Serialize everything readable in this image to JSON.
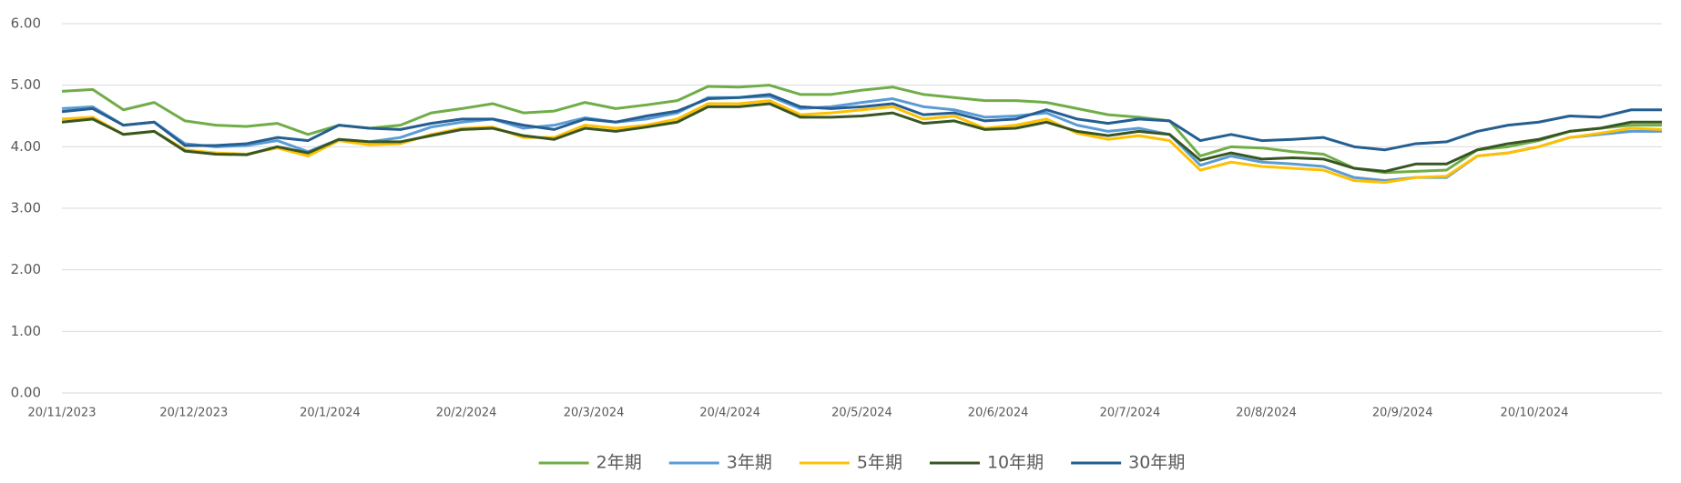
{
  "chart_data": {
    "type": "line",
    "x": [
      "20/11/2023",
      "27/11/2023",
      "4/12/2023",
      "11/12/2023",
      "18/12/2023",
      "25/12/2023",
      "1/1/2024",
      "8/1/2024",
      "15/1/2024",
      "22/1/2024",
      "29/1/2024",
      "5/2/2024",
      "12/2/2024",
      "19/2/2024",
      "26/2/2024",
      "4/3/2024",
      "11/3/2024",
      "18/3/2024",
      "25/3/2024",
      "1/4/2024",
      "8/4/2024",
      "15/4/2024",
      "22/4/2024",
      "29/4/2024",
      "6/5/2024",
      "13/5/2024",
      "20/5/2024",
      "27/5/2024",
      "3/6/2024",
      "10/6/2024",
      "17/6/2024",
      "24/6/2024",
      "1/7/2024",
      "8/7/2024",
      "15/7/2024",
      "22/7/2024",
      "29/7/2024",
      "5/8/2024",
      "12/8/2024",
      "19/8/2024",
      "26/8/2024",
      "2/9/2024",
      "9/9/2024",
      "16/9/2024",
      "23/9/2024",
      "30/9/2024",
      "7/10/2024",
      "14/10/2024",
      "21/10/2024",
      "28/10/2024",
      "4/11/2024",
      "11/11/2024",
      "18/11/2024"
    ],
    "xlim": [
      "20/11/2023",
      "18/11/2024"
    ],
    "xticks": [
      "20/11/2023",
      "20/12/2023",
      "20/1/2024",
      "20/2/2024",
      "20/3/2024",
      "20/4/2024",
      "20/5/2024",
      "20/6/2024",
      "20/7/2024",
      "20/8/2024",
      "20/9/2024",
      "20/10/2024"
    ],
    "ylim": [
      0,
      6
    ],
    "yticks": [
      {
        "value": 0,
        "label": "0.00"
      },
      {
        "value": 1,
        "label": "1.00"
      },
      {
        "value": 2,
        "label": "2.00"
      },
      {
        "value": 3,
        "label": "3.00"
      },
      {
        "value": 4,
        "label": "4.00"
      },
      {
        "value": 5,
        "label": "5.00"
      },
      {
        "value": 6,
        "label": "6.00"
      }
    ],
    "grid": true,
    "legend": "bottom",
    "series": [
      {
        "name": "2年期",
        "color": "#70ad47",
        "values": [
          4.9,
          4.93,
          4.6,
          4.72,
          4.42,
          4.35,
          4.33,
          4.38,
          4.2,
          4.35,
          4.3,
          4.35,
          4.55,
          4.62,
          4.7,
          4.55,
          4.58,
          4.72,
          4.62,
          4.68,
          4.75,
          4.98,
          4.97,
          5.0,
          4.85,
          4.85,
          4.92,
          4.97,
          4.85,
          4.8,
          4.75,
          4.75,
          4.72,
          4.62,
          4.52,
          4.48,
          4.42,
          3.85,
          4.0,
          3.98,
          3.92,
          3.88,
          3.65,
          3.58,
          3.6,
          3.62,
          3.95,
          4.0,
          4.1,
          4.25,
          4.3,
          4.35,
          4.35
        ]
      },
      {
        "name": "3年期",
        "color": "#5b9bd5",
        "values": [
          4.62,
          4.65,
          4.35,
          4.4,
          4.05,
          4.0,
          4.02,
          4.1,
          3.92,
          4.12,
          4.08,
          4.15,
          4.32,
          4.4,
          4.45,
          4.3,
          4.35,
          4.47,
          4.4,
          4.45,
          4.55,
          4.8,
          4.8,
          4.82,
          4.62,
          4.65,
          4.72,
          4.78,
          4.65,
          4.6,
          4.48,
          4.5,
          4.55,
          4.35,
          4.25,
          4.3,
          4.2,
          3.7,
          3.85,
          3.75,
          3.72,
          3.68,
          3.5,
          3.45,
          3.5,
          3.5,
          3.85,
          3.9,
          4.0,
          4.15,
          4.2,
          4.25,
          4.25
        ]
      },
      {
        "name": "5年期",
        "color": "#ffc000",
        "values": [
          4.45,
          4.48,
          4.2,
          4.25,
          3.95,
          3.9,
          3.88,
          3.98,
          3.85,
          4.1,
          4.03,
          4.05,
          4.2,
          4.3,
          4.32,
          4.15,
          4.15,
          4.35,
          4.3,
          4.35,
          4.45,
          4.7,
          4.7,
          4.75,
          4.52,
          4.55,
          4.6,
          4.65,
          4.45,
          4.5,
          4.3,
          4.35,
          4.45,
          4.22,
          4.12,
          4.18,
          4.1,
          3.62,
          3.75,
          3.68,
          3.65,
          3.62,
          3.45,
          3.42,
          3.5,
          3.52,
          3.85,
          3.9,
          4.0,
          4.15,
          4.22,
          4.3,
          4.28
        ]
      },
      {
        "name": "10年期",
        "color": "#375623",
        "values": [
          4.4,
          4.45,
          4.2,
          4.25,
          3.93,
          3.88,
          3.87,
          4.0,
          3.9,
          4.12,
          4.08,
          4.08,
          4.18,
          4.28,
          4.3,
          4.18,
          4.12,
          4.3,
          4.25,
          4.32,
          4.4,
          4.65,
          4.65,
          4.7,
          4.48,
          4.48,
          4.5,
          4.55,
          4.38,
          4.42,
          4.28,
          4.3,
          4.4,
          4.25,
          4.18,
          4.25,
          4.2,
          3.78,
          3.9,
          3.8,
          3.82,
          3.8,
          3.65,
          3.6,
          3.72,
          3.72,
          3.95,
          4.05,
          4.12,
          4.25,
          4.3,
          4.4,
          4.4
        ]
      },
      {
        "name": "30年期",
        "color": "#255e91",
        "values": [
          4.57,
          4.62,
          4.35,
          4.4,
          4.02,
          4.02,
          4.05,
          4.15,
          4.1,
          4.35,
          4.3,
          4.28,
          4.38,
          4.45,
          4.45,
          4.35,
          4.28,
          4.45,
          4.4,
          4.5,
          4.58,
          4.78,
          4.8,
          4.85,
          4.65,
          4.62,
          4.65,
          4.7,
          4.52,
          4.55,
          4.42,
          4.45,
          4.6,
          4.45,
          4.38,
          4.45,
          4.42,
          4.1,
          4.2,
          4.1,
          4.12,
          4.15,
          4.0,
          3.95,
          4.05,
          4.08,
          4.25,
          4.35,
          4.4,
          4.5,
          4.48,
          4.6,
          4.6
        ]
      }
    ]
  }
}
